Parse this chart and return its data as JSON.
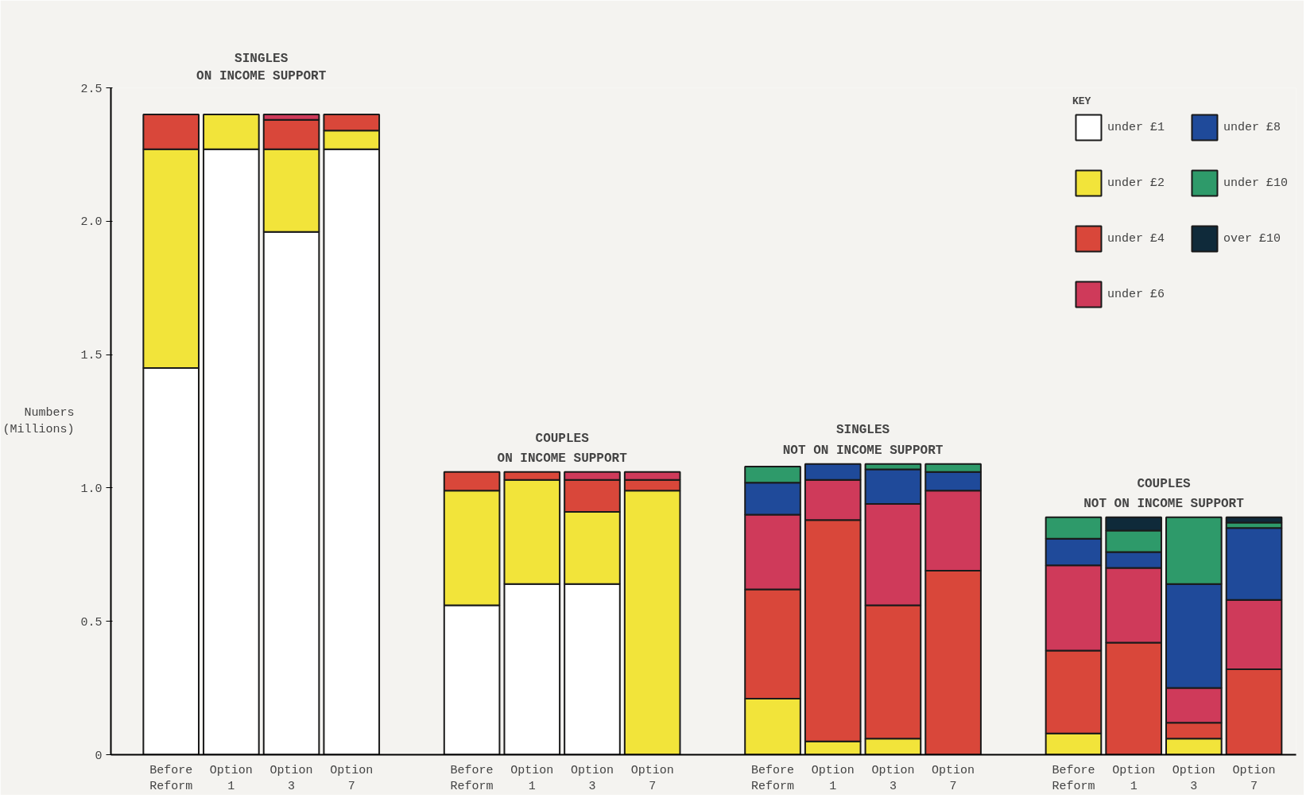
{
  "chart_data": {
    "type": "bar",
    "stacked": true,
    "ylabel": "Numbers\n(Millions)",
    "legend_title": "KEY",
    "legend": "top right",
    "grid": false,
    "annotations": [
      "SINGLES\nON INCOME SUPPORT",
      "COUPLES\nON INCOME SUPPORT",
      "SINGLES\nNOT ON INCOME SUPPORT",
      "COUPLES\nNOT ON INCOME SUPPORT"
    ],
    "categories": [
      "Before\nReform",
      "Option\n1",
      "Option\n3",
      "Option\n7",
      null,
      "Before\nReform",
      "Option\n1",
      "Option\n3",
      "Option\n7",
      null,
      "Before\nReform",
      "Option\n1",
      "Option\n3",
      "Option\n7",
      null,
      "Before\nReform",
      "Option\n1",
      "Option\n3",
      "Option\n7"
    ],
    "ylim": [
      0,
      2.5
    ],
    "yticks": [
      0,
      0.5,
      {
        "value": 1,
        "label": "1.0"
      },
      1.5,
      {
        "value": 2,
        "label": "2.0"
      },
      2.5
    ],
    "series": [
      {
        "name": "under £1",
        "color": "#ffffff",
        "values": [
          1.45,
          2.27,
          1.96,
          2.27,
          null,
          0.56,
          0.64,
          0.64,
          null,
          null,
          null,
          null,
          null,
          null,
          null,
          null,
          null,
          null,
          null
        ]
      },
      {
        "name": "under £2",
        "color": "#f2e43a",
        "values": [
          0.82,
          0.13,
          0.31,
          0.07,
          null,
          0.43,
          0.39,
          0.27,
          0.99,
          null,
          0.21,
          0.05,
          0.06,
          null,
          null,
          0.08,
          null,
          0.06,
          null
        ]
      },
      {
        "name": "under £4",
        "color": "#d9473a",
        "values": [
          0.13,
          null,
          0.11,
          0.06,
          null,
          0.07,
          0.03,
          0.12,
          0.04,
          null,
          0.41,
          0.83,
          0.5,
          0.69,
          null,
          0.31,
          0.42,
          0.06,
          0.32
        ]
      },
      {
        "name": "under £6",
        "color": "#cf3a5a",
        "values": [
          null,
          null,
          0.02,
          null,
          null,
          null,
          null,
          0.03,
          0.03,
          null,
          0.28,
          0.15,
          0.38,
          0.3,
          null,
          0.32,
          0.28,
          0.13,
          0.26
        ]
      },
      {
        "name": "under £8",
        "color": "#1f4a9a",
        "values": [
          null,
          null,
          null,
          null,
          null,
          null,
          null,
          null,
          null,
          null,
          0.12,
          0.06,
          0.13,
          0.07,
          null,
          0.1,
          0.06,
          0.39,
          0.27
        ]
      },
      {
        "name": "under £10",
        "color": "#2e9a6a",
        "values": [
          null,
          null,
          null,
          null,
          null,
          null,
          null,
          null,
          null,
          null,
          0.06,
          null,
          0.02,
          0.03,
          null,
          0.08,
          0.08,
          0.25,
          0.02
        ]
      },
      {
        "name": "over £10",
        "color": "#0f2a3a",
        "values": [
          null,
          null,
          null,
          null,
          null,
          null,
          null,
          null,
          null,
          null,
          null,
          null,
          null,
          null,
          null,
          null,
          0.05,
          null,
          0.02
        ]
      }
    ]
  }
}
